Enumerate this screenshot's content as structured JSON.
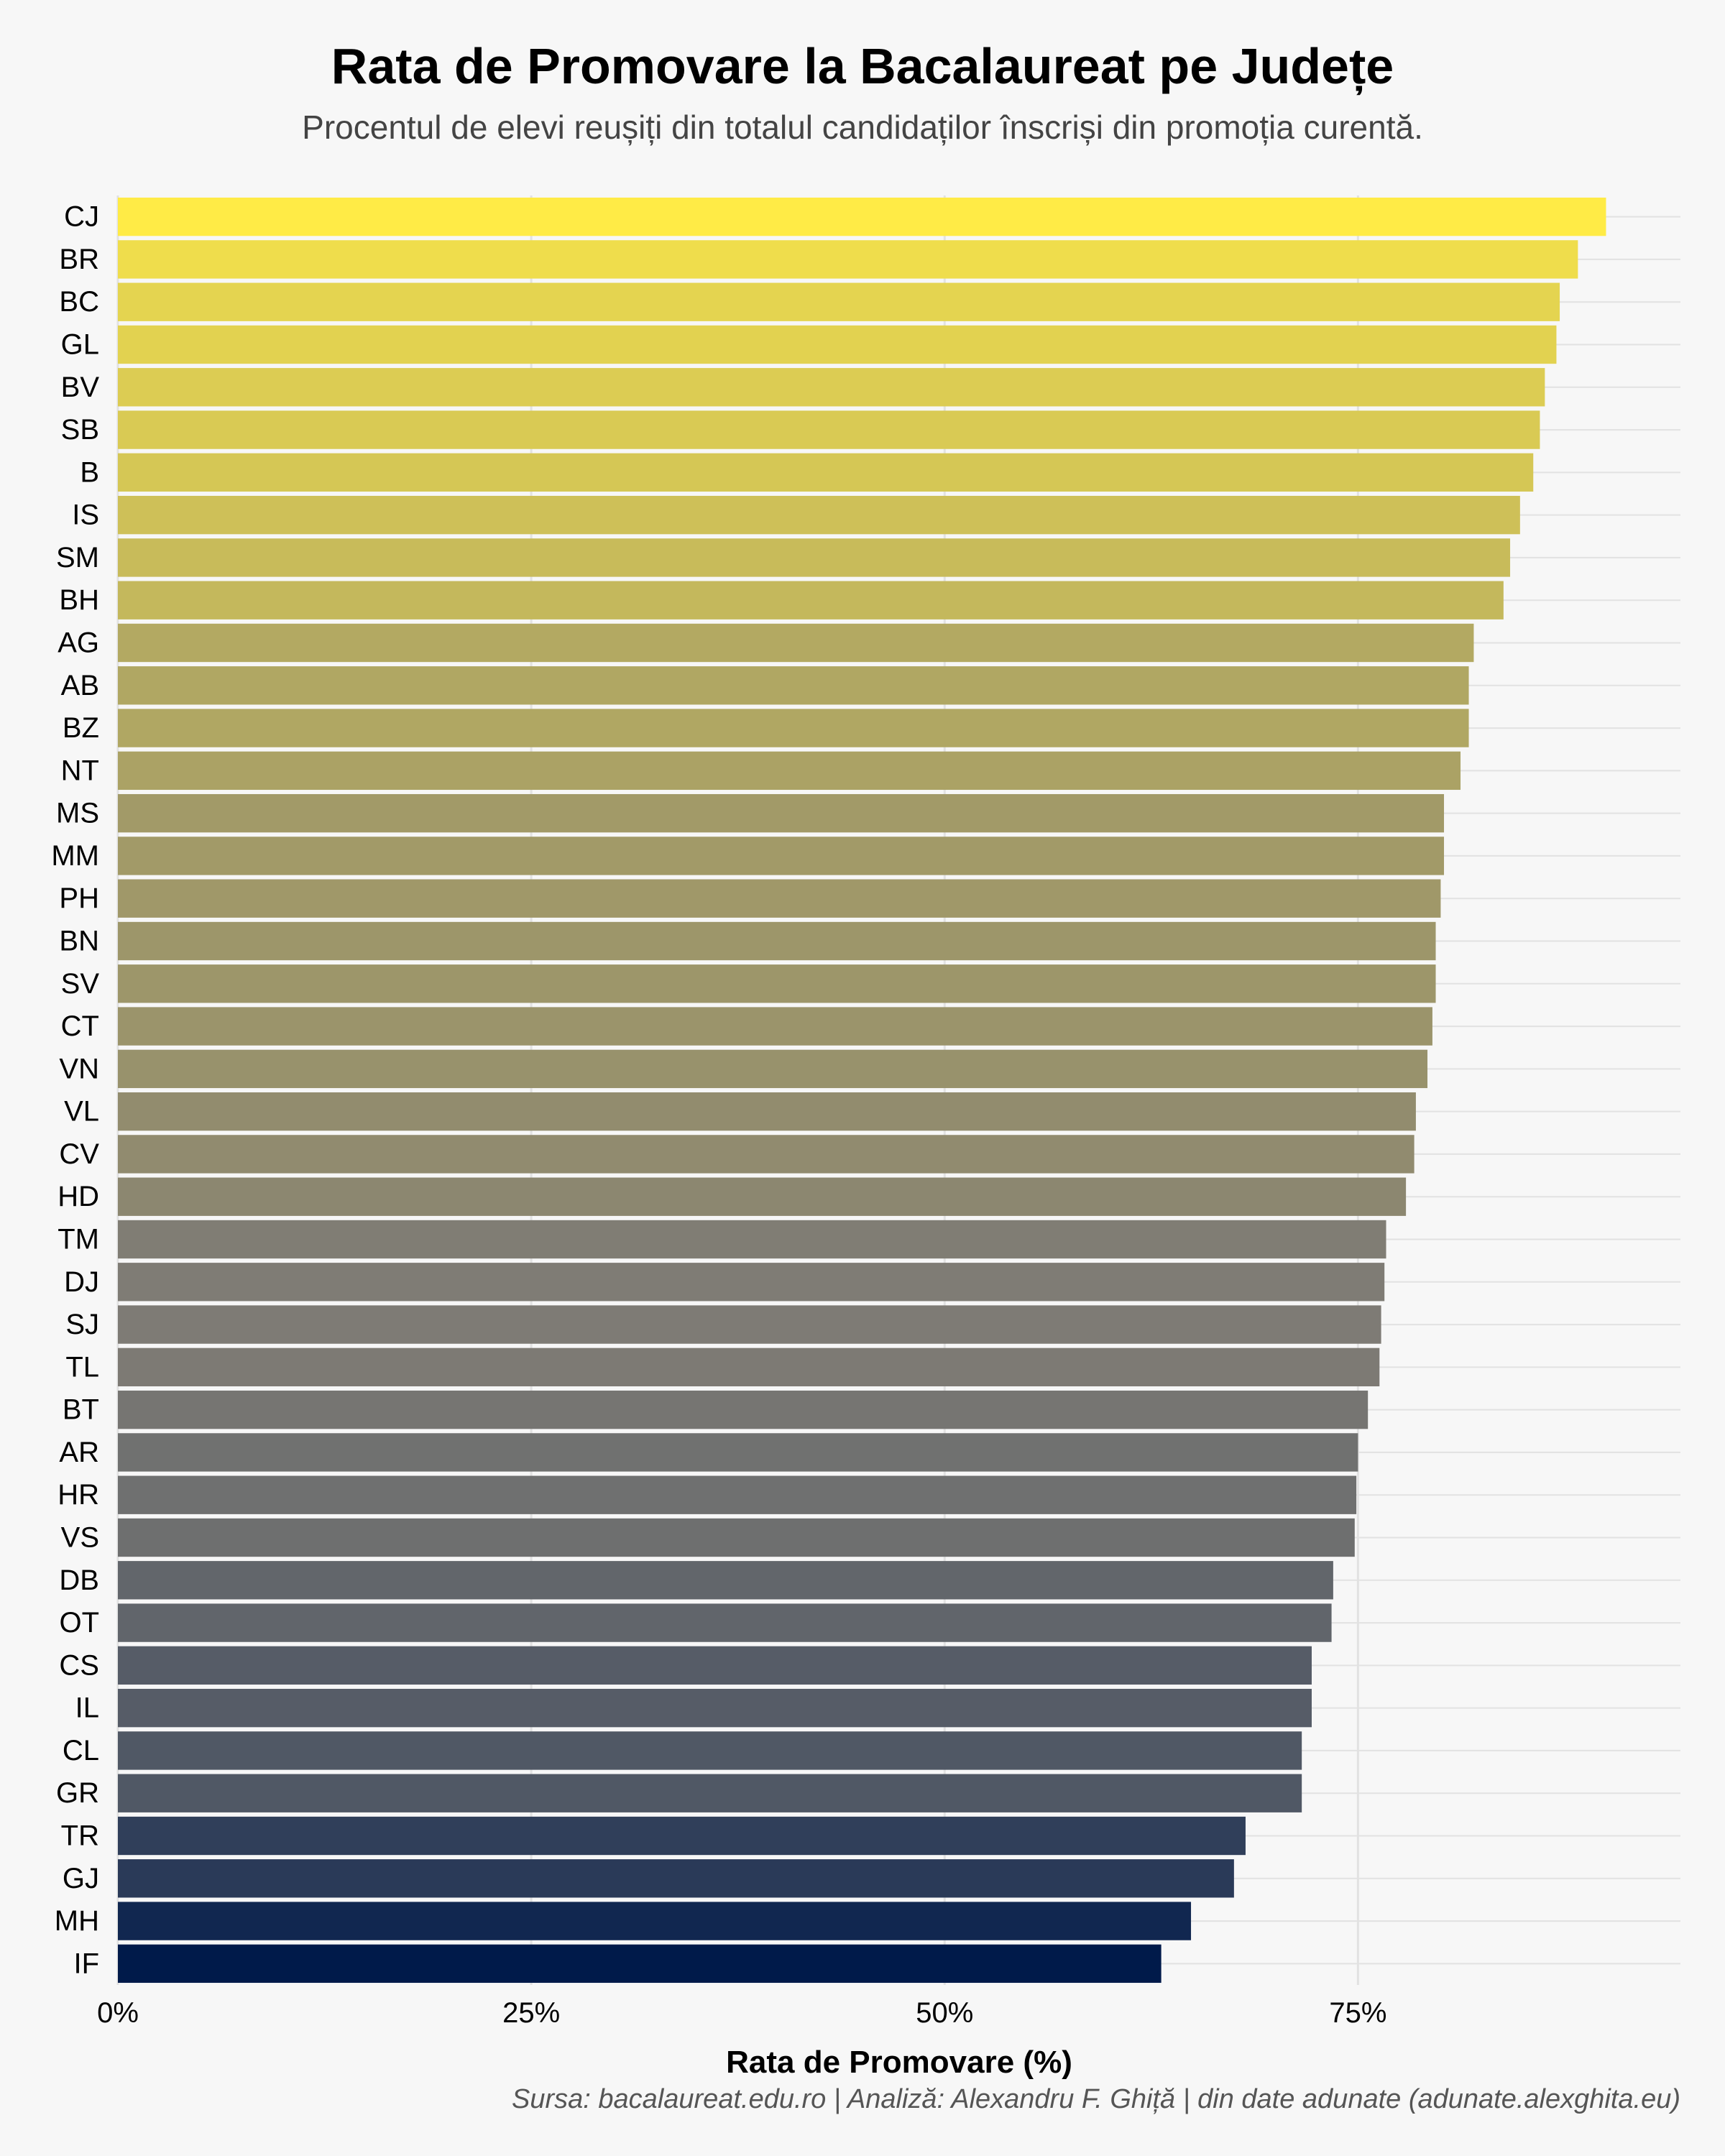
{
  "chart_data": {
    "type": "bar",
    "orientation": "horizontal",
    "title": "Rata de Promovare la Bacalaureat pe Județe",
    "subtitle": "Procentul de elevi reușiți din totalul candidaților înscriși din promoția curentă.",
    "xlabel": "Rata de Promovare (%)",
    "ylabel": "",
    "caption": "Sursa: bacalaureat.edu.ro | Analiză: Alexandru F. Ghiță | din date adunate (adunate.alexghita.eu)",
    "xlim": [
      0,
      94.5
    ],
    "xticks": [
      0,
      25,
      50,
      75
    ],
    "xtick_labels": [
      "0%",
      "25%",
      "50%",
      "75%"
    ],
    "grid": true,
    "legend": "none",
    "color_scale": [
      "#001a4a",
      "#7f7c75",
      "#ffeb46"
    ],
    "categories": [
      "CJ",
      "BR",
      "BC",
      "GL",
      "BV",
      "SB",
      "B",
      "IS",
      "SM",
      "BH",
      "AG",
      "AB",
      "BZ",
      "NT",
      "MS",
      "MM",
      "PH",
      "BN",
      "SV",
      "CT",
      "VN",
      "VL",
      "CV",
      "HD",
      "TM",
      "DJ",
      "SJ",
      "TL",
      "BT",
      "AR",
      "HR",
      "VS",
      "DB",
      "OT",
      "CS",
      "IL",
      "CL",
      "GR",
      "TR",
      "GJ",
      "MH",
      "IF"
    ],
    "values": [
      90.0,
      88.3,
      87.2,
      87.0,
      86.3,
      86.0,
      85.6,
      84.8,
      84.2,
      83.8,
      82.0,
      81.7,
      81.7,
      81.2,
      80.2,
      80.2,
      80.0,
      79.7,
      79.7,
      79.5,
      79.2,
      78.5,
      78.4,
      77.9,
      76.7,
      76.6,
      76.4,
      76.3,
      75.6,
      75.0,
      74.9,
      74.8,
      73.5,
      73.4,
      72.2,
      72.2,
      71.6,
      71.6,
      68.2,
      67.5,
      64.9,
      63.1
    ]
  }
}
